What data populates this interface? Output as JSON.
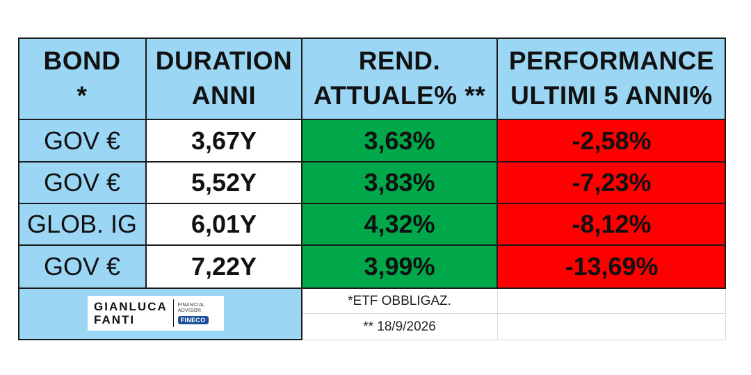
{
  "headers": {
    "bond": [
      "BOND",
      "*"
    ],
    "duration": [
      "DURATION",
      "ANNI"
    ],
    "yield": [
      "REND.",
      "ATTUALE% **"
    ],
    "performance": [
      "PERFORMANCE",
      "ULTIMI 5 ANNI%"
    ]
  },
  "rows": [
    {
      "bond": "GOV €",
      "duration": "3,67Y",
      "yield": "3,63%",
      "performance": "-2,58%"
    },
    {
      "bond": "GOV €",
      "duration": "5,52Y",
      "yield": "3,83%",
      "performance": "-7,23%"
    },
    {
      "bond": "GLOB. IG",
      "duration": "6,01Y",
      "yield": "4,32%",
      "performance": "-8,12%"
    },
    {
      "bond": "GOV €",
      "duration": "7,22Y",
      "yield": "3,99%",
      "performance": "-13,69%"
    }
  ],
  "notes": {
    "etf": "*ETF OBBLIGAZ.",
    "date": "** 18/9/2026"
  },
  "logo": {
    "name_line1": "GIANLUCA",
    "name_line2": "FANTI",
    "role": "FINANCIAL ADVISOR",
    "brand": "FINECO"
  },
  "colors": {
    "header_blue": "#9bd6f5",
    "yield_green": "#00a84a",
    "performance_red": "#ff0000"
  }
}
